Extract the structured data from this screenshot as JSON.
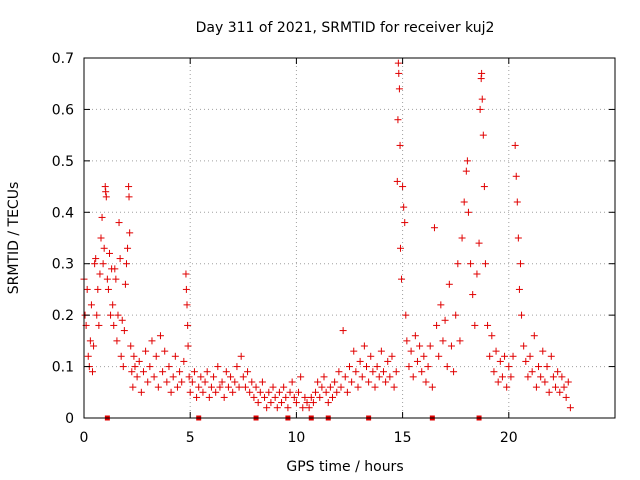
{
  "chart_data": {
    "type": "scatter",
    "title": "Day 311 of 2021, SRMTID for receiver kuj2",
    "xlabel": "GPS time / hours",
    "ylabel": "SRMTID / TECUs",
    "xlim": [
      0,
      25
    ],
    "ylim": [
      0,
      0.7
    ],
    "xticks": [
      0,
      5,
      10,
      15,
      20
    ],
    "xtick_labels": [
      "0",
      "5",
      "10",
      "15",
      "20"
    ],
    "yticks": [
      0,
      0.1,
      0.2,
      0.3,
      0.4,
      0.5,
      0.6,
      0.7
    ],
    "ytick_labels": [
      "0",
      "0.1",
      "0.2",
      "0.3",
      "0.4",
      "0.5",
      "0.6",
      "0.7"
    ],
    "grid": true,
    "marker": "+",
    "color": "#e00000",
    "zero_markers_x": [
      1.1,
      5.4,
      8.1,
      9.6,
      10.7,
      11.5,
      13.4,
      16.4,
      18.6
    ],
    "series": [
      {
        "name": "SRMTID",
        "points": [
          [
            0.0,
            0.27
          ],
          [
            0.05,
            0.2
          ],
          [
            0.1,
            0.18
          ],
          [
            0.15,
            0.25
          ],
          [
            0.2,
            0.12
          ],
          [
            0.25,
            0.1
          ],
          [
            0.3,
            0.15
          ],
          [
            0.35,
            0.22
          ],
          [
            0.4,
            0.09
          ],
          [
            0.45,
            0.14
          ],
          [
            0.5,
            0.3
          ],
          [
            0.55,
            0.31
          ],
          [
            0.6,
            0.2
          ],
          [
            0.65,
            0.25
          ],
          [
            0.7,
            0.18
          ],
          [
            0.75,
            0.28
          ],
          [
            0.8,
            0.35
          ],
          [
            0.85,
            0.39
          ],
          [
            0.9,
            0.3
          ],
          [
            0.95,
            0.33
          ],
          [
            1.0,
            0.45
          ],
          [
            1.02,
            0.44
          ],
          [
            1.05,
            0.43
          ],
          [
            1.1,
            0.27
          ],
          [
            1.15,
            0.25
          ],
          [
            1.2,
            0.32
          ],
          [
            1.25,
            0.2
          ],
          [
            1.3,
            0.29
          ],
          [
            1.35,
            0.22
          ],
          [
            1.4,
            0.18
          ],
          [
            1.45,
            0.29
          ],
          [
            1.5,
            0.27
          ],
          [
            1.55,
            0.15
          ],
          [
            1.6,
            0.2
          ],
          [
            1.65,
            0.38
          ],
          [
            1.7,
            0.31
          ],
          [
            1.75,
            0.12
          ],
          [
            1.8,
            0.19
          ],
          [
            1.85,
            0.1
          ],
          [
            1.9,
            0.17
          ],
          [
            1.95,
            0.26
          ],
          [
            2.0,
            0.3
          ],
          [
            2.05,
            0.33
          ],
          [
            2.1,
            0.45
          ],
          [
            2.12,
            0.43
          ],
          [
            2.15,
            0.36
          ],
          [
            2.2,
            0.14
          ],
          [
            2.25,
            0.09
          ],
          [
            2.3,
            0.06
          ],
          [
            2.35,
            0.12
          ],
          [
            2.4,
            0.1
          ],
          [
            2.5,
            0.08
          ],
          [
            2.6,
            0.11
          ],
          [
            2.7,
            0.05
          ],
          [
            2.8,
            0.09
          ],
          [
            2.9,
            0.13
          ],
          [
            3.0,
            0.07
          ],
          [
            3.1,
            0.1
          ],
          [
            3.2,
            0.15
          ],
          [
            3.3,
            0.08
          ],
          [
            3.4,
            0.12
          ],
          [
            3.5,
            0.06
          ],
          [
            3.6,
            0.16
          ],
          [
            3.7,
            0.09
          ],
          [
            3.8,
            0.13
          ],
          [
            3.9,
            0.07
          ],
          [
            4.0,
            0.1
          ],
          [
            4.1,
            0.05
          ],
          [
            4.2,
            0.08
          ],
          [
            4.3,
            0.12
          ],
          [
            4.4,
            0.06
          ],
          [
            4.5,
            0.09
          ],
          [
            4.6,
            0.07
          ],
          [
            4.7,
            0.11
          ],
          [
            4.8,
            0.28
          ],
          [
            4.82,
            0.25
          ],
          [
            4.85,
            0.22
          ],
          [
            4.88,
            0.18
          ],
          [
            4.9,
            0.14
          ],
          [
            4.95,
            0.08
          ],
          [
            5.0,
            0.05
          ],
          [
            5.1,
            0.07
          ],
          [
            5.2,
            0.09
          ],
          [
            5.3,
            0.04
          ],
          [
            5.4,
            0.06
          ],
          [
            5.5,
            0.08
          ],
          [
            5.6,
            0.05
          ],
          [
            5.7,
            0.07
          ],
          [
            5.8,
            0.09
          ],
          [
            5.9,
            0.04
          ],
          [
            6.0,
            0.06
          ],
          [
            6.1,
            0.08
          ],
          [
            6.2,
            0.05
          ],
          [
            6.3,
            0.1
          ],
          [
            6.4,
            0.06
          ],
          [
            6.5,
            0.07
          ],
          [
            6.6,
            0.04
          ],
          [
            6.7,
            0.09
          ],
          [
            6.8,
            0.06
          ],
          [
            6.9,
            0.08
          ],
          [
            7.0,
            0.05
          ],
          [
            7.1,
            0.07
          ],
          [
            7.2,
            0.1
          ],
          [
            7.3,
            0.06
          ],
          [
            7.4,
            0.12
          ],
          [
            7.5,
            0.08
          ],
          [
            7.6,
            0.06
          ],
          [
            7.7,
            0.09
          ],
          [
            7.8,
            0.05
          ],
          [
            7.9,
            0.07
          ],
          [
            8.0,
            0.04
          ],
          [
            8.1,
            0.06
          ],
          [
            8.2,
            0.03
          ],
          [
            8.3,
            0.05
          ],
          [
            8.4,
            0.07
          ],
          [
            8.5,
            0.04
          ],
          [
            8.6,
            0.02
          ],
          [
            8.7,
            0.05
          ],
          [
            8.8,
            0.03
          ],
          [
            8.9,
            0.06
          ],
          [
            9.0,
            0.04
          ],
          [
            9.1,
            0.02
          ],
          [
            9.2,
            0.05
          ],
          [
            9.3,
            0.03
          ],
          [
            9.4,
            0.06
          ],
          [
            9.5,
            0.04
          ],
          [
            9.6,
            0.02
          ],
          [
            9.7,
            0.05
          ],
          [
            9.8,
            0.07
          ],
          [
            9.9,
            0.04
          ],
          [
            10.0,
            0.03
          ],
          [
            10.1,
            0.05
          ],
          [
            10.2,
            0.08
          ],
          [
            10.3,
            0.02
          ],
          [
            10.4,
            0.04
          ],
          [
            10.5,
            0.03
          ],
          [
            10.6,
            0.02
          ],
          [
            10.7,
            0.04
          ],
          [
            10.8,
            0.03
          ],
          [
            10.9,
            0.05
          ],
          [
            11.0,
            0.07
          ],
          [
            11.1,
            0.04
          ],
          [
            11.2,
            0.06
          ],
          [
            11.3,
            0.08
          ],
          [
            11.4,
            0.05
          ],
          [
            11.5,
            0.03
          ],
          [
            11.6,
            0.06
          ],
          [
            11.7,
            0.04
          ],
          [
            11.8,
            0.07
          ],
          [
            11.9,
            0.05
          ],
          [
            12.0,
            0.09
          ],
          [
            12.1,
            0.06
          ],
          [
            12.2,
            0.17
          ],
          [
            12.3,
            0.08
          ],
          [
            12.4,
            0.05
          ],
          [
            12.5,
            0.1
          ],
          [
            12.6,
            0.07
          ],
          [
            12.7,
            0.13
          ],
          [
            12.8,
            0.09
          ],
          [
            12.9,
            0.06
          ],
          [
            13.0,
            0.11
          ],
          [
            13.1,
            0.08
          ],
          [
            13.2,
            0.14
          ],
          [
            13.3,
            0.1
          ],
          [
            13.4,
            0.07
          ],
          [
            13.5,
            0.12
          ],
          [
            13.6,
            0.09
          ],
          [
            13.7,
            0.06
          ],
          [
            13.8,
            0.1
          ],
          [
            13.9,
            0.08
          ],
          [
            14.0,
            0.13
          ],
          [
            14.1,
            0.09
          ],
          [
            14.2,
            0.07
          ],
          [
            14.3,
            0.11
          ],
          [
            14.4,
            0.08
          ],
          [
            14.5,
            0.12
          ],
          [
            14.6,
            0.06
          ],
          [
            14.7,
            0.09
          ],
          [
            14.75,
            0.46
          ],
          [
            14.78,
            0.58
          ],
          [
            14.8,
            0.69
          ],
          [
            14.82,
            0.67
          ],
          [
            14.85,
            0.64
          ],
          [
            14.88,
            0.53
          ],
          [
            14.9,
            0.33
          ],
          [
            14.95,
            0.27
          ],
          [
            15.0,
            0.45
          ],
          [
            15.05,
            0.41
          ],
          [
            15.1,
            0.38
          ],
          [
            15.15,
            0.2
          ],
          [
            15.2,
            0.15
          ],
          [
            15.3,
            0.1
          ],
          [
            15.4,
            0.13
          ],
          [
            15.5,
            0.08
          ],
          [
            15.6,
            0.16
          ],
          [
            15.7,
            0.11
          ],
          [
            15.8,
            0.14
          ],
          [
            15.9,
            0.09
          ],
          [
            16.0,
            0.12
          ],
          [
            16.1,
            0.07
          ],
          [
            16.2,
            0.1
          ],
          [
            16.3,
            0.14
          ],
          [
            16.4,
            0.06
          ],
          [
            16.5,
            0.37
          ],
          [
            16.6,
            0.18
          ],
          [
            16.7,
            0.12
          ],
          [
            16.8,
            0.22
          ],
          [
            16.9,
            0.15
          ],
          [
            17.0,
            0.19
          ],
          [
            17.1,
            0.1
          ],
          [
            17.2,
            0.26
          ],
          [
            17.3,
            0.14
          ],
          [
            17.4,
            0.09
          ],
          [
            17.5,
            0.2
          ],
          [
            17.6,
            0.3
          ],
          [
            17.7,
            0.15
          ],
          [
            17.8,
            0.35
          ],
          [
            17.9,
            0.42
          ],
          [
            18.0,
            0.48
          ],
          [
            18.05,
            0.5
          ],
          [
            18.1,
            0.4
          ],
          [
            18.2,
            0.3
          ],
          [
            18.3,
            0.24
          ],
          [
            18.4,
            0.18
          ],
          [
            18.5,
            0.28
          ],
          [
            18.6,
            0.34
          ],
          [
            18.65,
            0.6
          ],
          [
            18.7,
            0.66
          ],
          [
            18.72,
            0.67
          ],
          [
            18.75,
            0.62
          ],
          [
            18.8,
            0.55
          ],
          [
            18.85,
            0.45
          ],
          [
            18.9,
            0.3
          ],
          [
            19.0,
            0.18
          ],
          [
            19.1,
            0.12
          ],
          [
            19.2,
            0.16
          ],
          [
            19.3,
            0.09
          ],
          [
            19.4,
            0.13
          ],
          [
            19.5,
            0.07
          ],
          [
            19.6,
            0.11
          ],
          [
            19.7,
            0.08
          ],
          [
            19.8,
            0.12
          ],
          [
            19.9,
            0.06
          ],
          [
            20.0,
            0.1
          ],
          [
            20.1,
            0.08
          ],
          [
            20.2,
            0.12
          ],
          [
            20.3,
            0.53
          ],
          [
            20.35,
            0.47
          ],
          [
            20.4,
            0.42
          ],
          [
            20.45,
            0.35
          ],
          [
            20.5,
            0.25
          ],
          [
            20.55,
            0.3
          ],
          [
            20.6,
            0.2
          ],
          [
            20.7,
            0.14
          ],
          [
            20.8,
            0.11
          ],
          [
            20.9,
            0.08
          ],
          [
            21.0,
            0.12
          ],
          [
            21.1,
            0.09
          ],
          [
            21.2,
            0.16
          ],
          [
            21.3,
            0.06
          ],
          [
            21.4,
            0.1
          ],
          [
            21.5,
            0.08
          ],
          [
            21.6,
            0.13
          ],
          [
            21.7,
            0.07
          ],
          [
            21.8,
            0.1
          ],
          [
            21.9,
            0.05
          ],
          [
            22.0,
            0.12
          ],
          [
            22.1,
            0.08
          ],
          [
            22.2,
            0.06
          ],
          [
            22.3,
            0.09
          ],
          [
            22.4,
            0.05
          ],
          [
            22.5,
            0.08
          ],
          [
            22.6,
            0.06
          ],
          [
            22.7,
            0.04
          ],
          [
            22.8,
            0.07
          ],
          [
            22.9,
            0.02
          ]
        ]
      }
    ]
  }
}
